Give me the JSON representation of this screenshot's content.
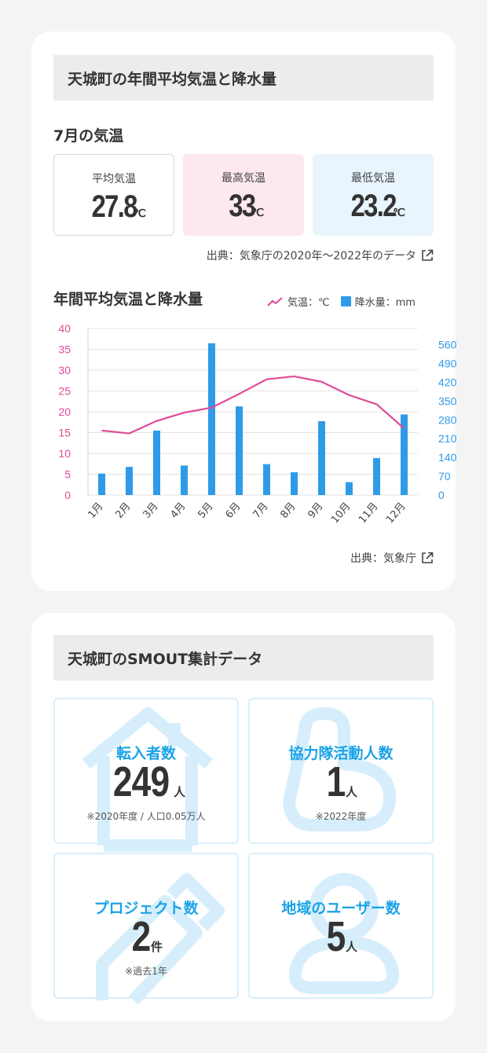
{
  "climate": {
    "heading": "天城町の年間平均気温と降水量",
    "july_title": "7月の気温",
    "boxes": {
      "avg": {
        "label": "平均気温",
        "value": "27.8",
        "unit": "℃"
      },
      "max": {
        "label": "最高気温",
        "value": "33",
        "unit": "℃"
      },
      "min": {
        "label": "最低気温",
        "value": "23.2",
        "unit": "℃"
      }
    },
    "source1": "出典：気象庁の2020年〜2022年のデータ",
    "chart_title": "年間平均気温と降水量",
    "legend_temp": "気温：℃",
    "legend_rain": "降水量：mm",
    "source2": "出典：気象庁",
    "colors": {
      "temp": "#e04a98",
      "rain": "#2f9be8",
      "source_link": "#444444"
    }
  },
  "chart_data": {
    "type": "bar",
    "title": "年間平均気温と降水量",
    "categories": [
      "1月",
      "2月",
      "3月",
      "4月",
      "5月",
      "6月",
      "7月",
      "8月",
      "9月",
      "10月",
      "11月",
      "12月"
    ],
    "series": [
      {
        "name": "気温：℃",
        "type": "line",
        "axis": "left",
        "values": [
          15.5,
          14.8,
          17.8,
          19.8,
          21.0,
          24.3,
          27.8,
          28.5,
          27.2,
          24.0,
          21.8,
          16.0
        ]
      },
      {
        "name": "降水量：mm",
        "type": "bar",
        "axis": "right",
        "values": [
          80,
          105,
          240,
          110,
          565,
          330,
          115,
          85,
          275,
          48,
          138,
          300
        ]
      }
    ],
    "y_left": {
      "ticks": [
        0,
        5,
        10,
        15,
        20,
        25,
        30,
        35,
        40
      ],
      "ylim": [
        0,
        40
      ]
    },
    "y_right": {
      "ticks": [
        0,
        70,
        140,
        210,
        280,
        350,
        420,
        490,
        560
      ],
      "ylim": [
        0,
        620
      ]
    },
    "grid": true
  },
  "smout": {
    "heading": "天城町のSMOUT集計データ",
    "stats": [
      {
        "label": "転入者数",
        "value": "249",
        "unit": "人",
        "note": "※2020年度 / 人口0.05万人",
        "icon": "house-icon"
      },
      {
        "label": "協力隊活動人数",
        "value": "1",
        "unit": "人",
        "note": "※2022年度",
        "icon": "thumbs-up-icon"
      },
      {
        "label": "プロジェクト数",
        "value": "2",
        "unit": "件",
        "note": "※過去1年",
        "icon": "pencil-icon"
      },
      {
        "label": "地域のユーザー数",
        "value": "5",
        "unit": "人",
        "note": "",
        "icon": "person-icon"
      }
    ]
  }
}
